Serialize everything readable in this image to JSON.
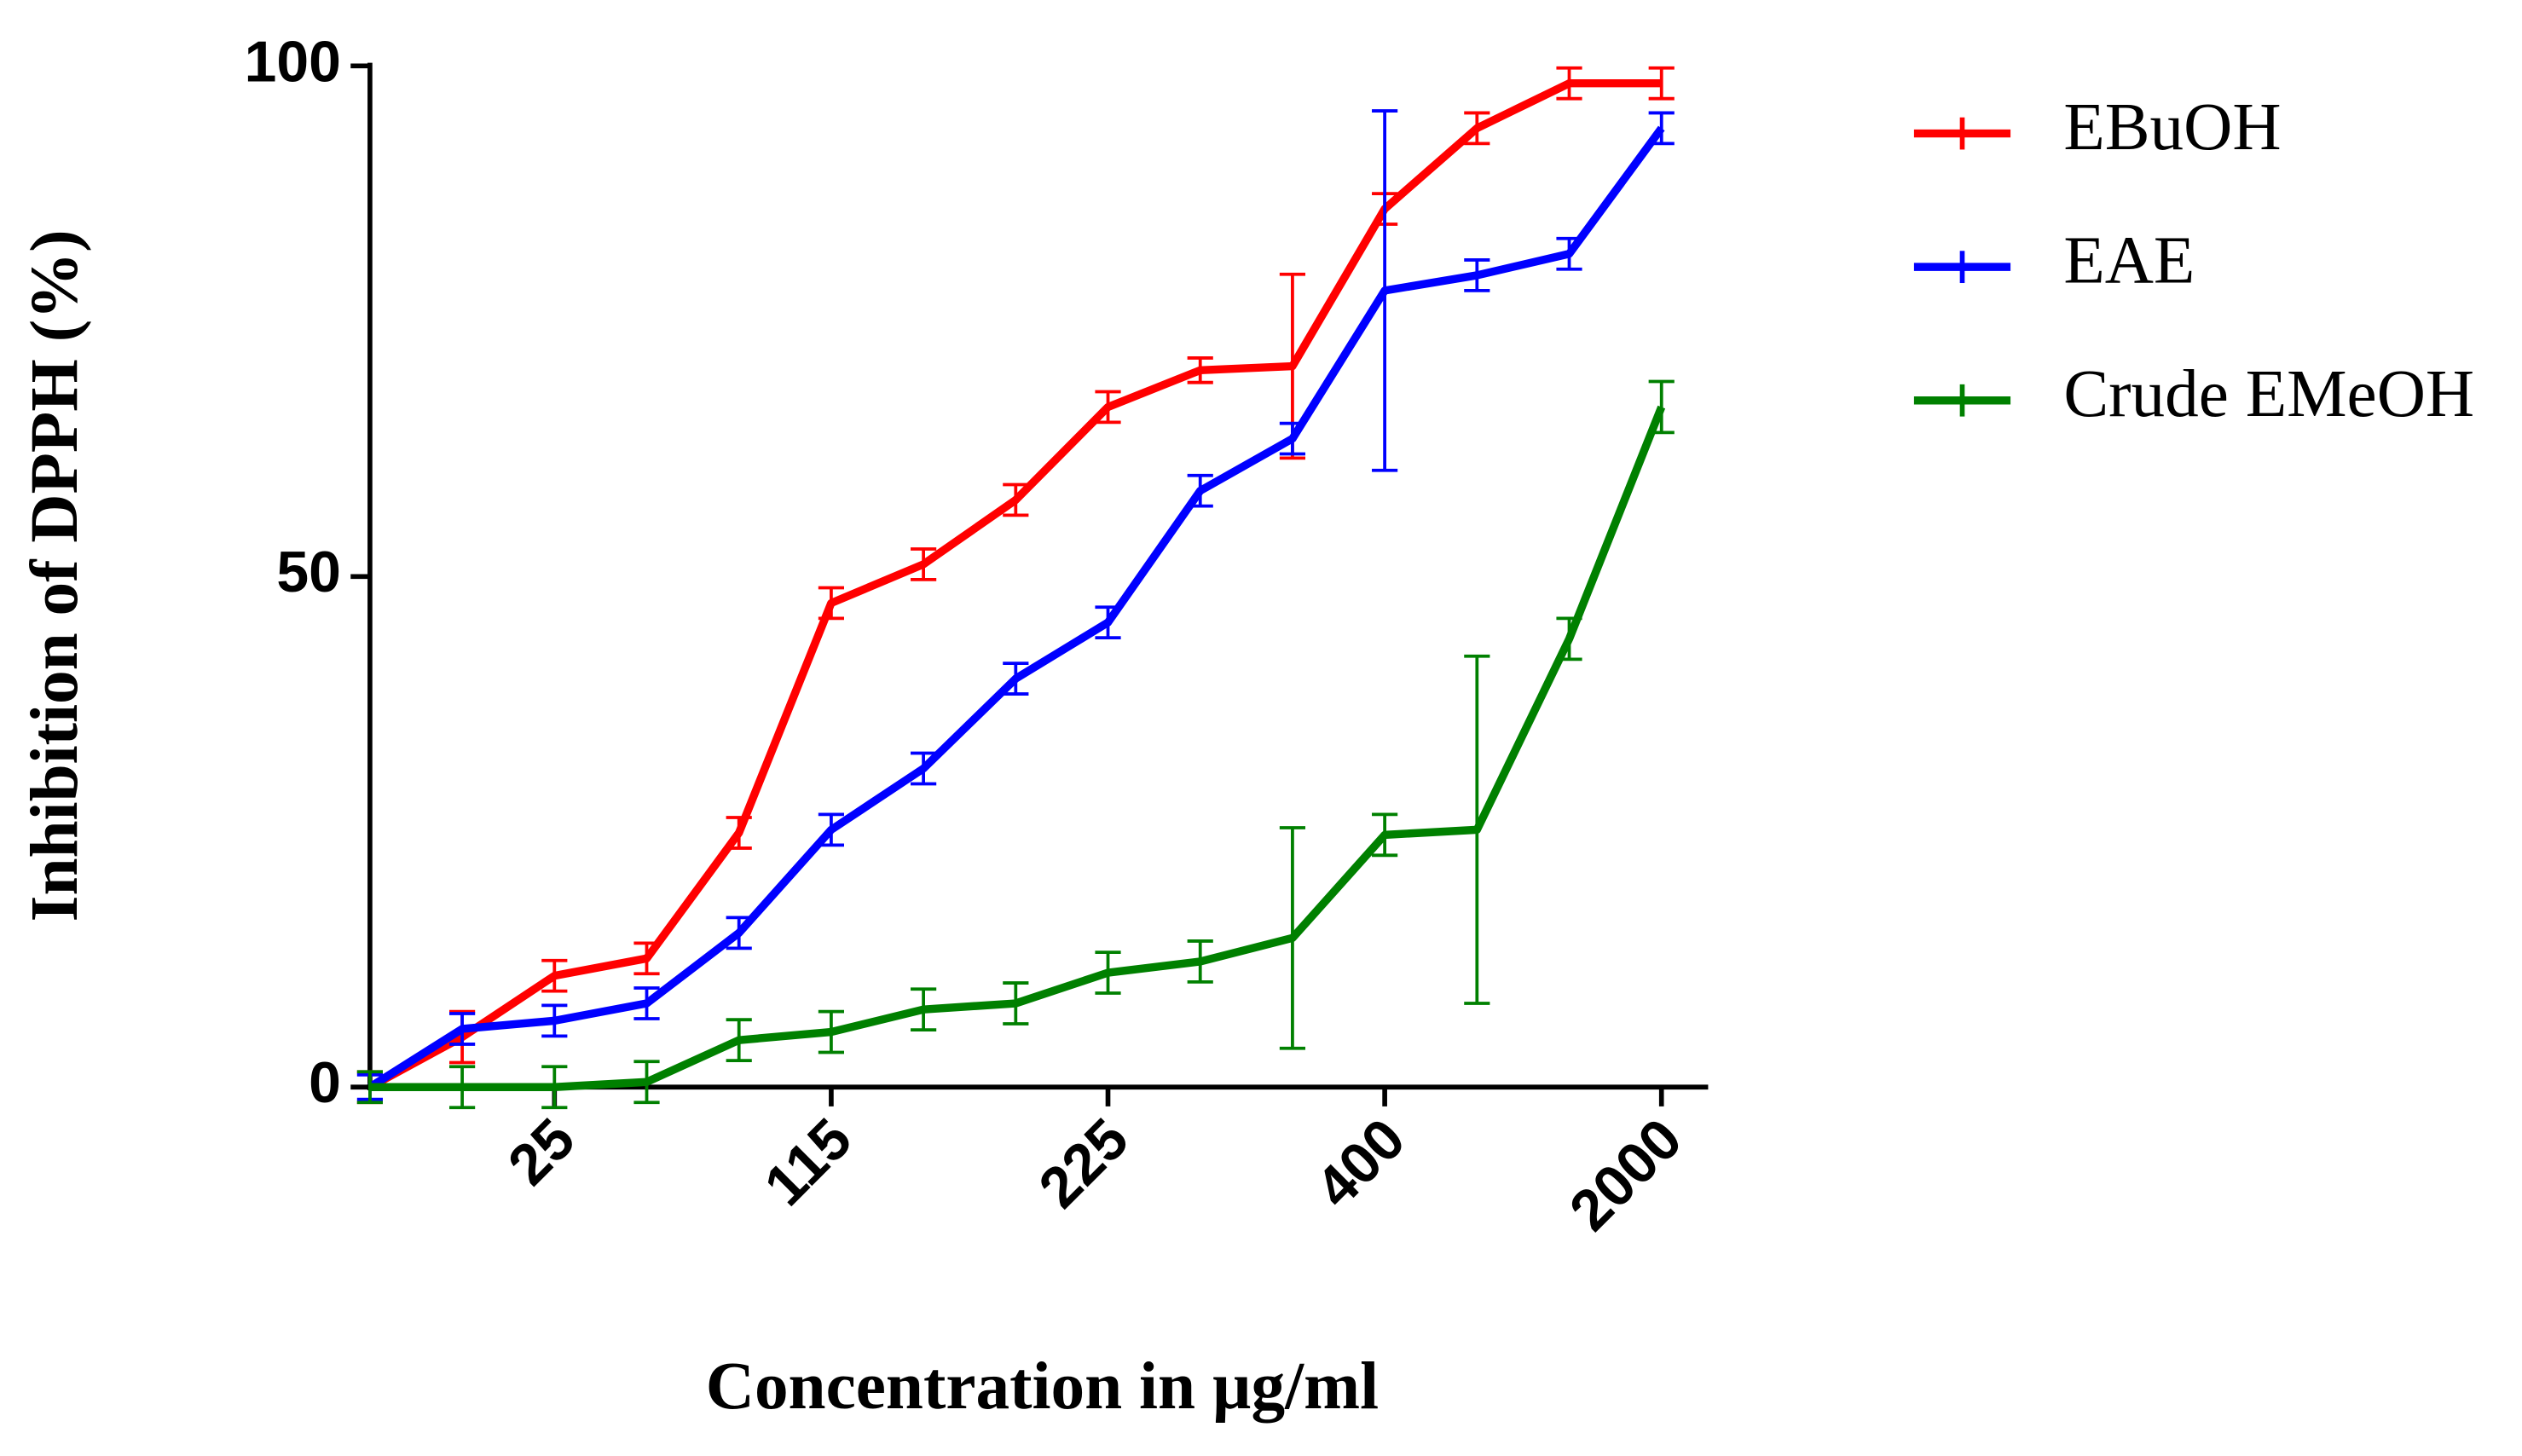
{
  "chart_data": {
    "type": "line",
    "x_label": "Concentration in µg/ml",
    "y_label": "Inhibition of DPPH (%)",
    "categories": [
      null,
      null,
      "25",
      null,
      null,
      "115",
      null,
      null,
      "225",
      null,
      null,
      "400",
      null,
      null,
      "2000"
    ],
    "ylim": [
      0,
      100
    ],
    "yticks": [
      0,
      50,
      100
    ],
    "legend": "right",
    "series": [
      {
        "name": "EBuOH",
        "color": "#ff0000",
        "values": [
          0,
          4.9,
          10.9,
          12.6,
          24.9,
          47.4,
          51.2,
          57.5,
          66.6,
          70.2,
          70.6,
          86.0,
          93.9,
          98.3,
          98.3
        ],
        "errors": [
          1.5,
          2.5,
          1.5,
          1.5,
          1.5,
          1.5,
          1.5,
          1.5,
          1.5,
          1.2,
          9.0,
          1.5,
          1.5,
          1.5,
          1.5
        ]
      },
      {
        "name": "EAE",
        "color": "#0000ff",
        "values": [
          0,
          5.7,
          6.5,
          8.2,
          15.1,
          25.2,
          31.2,
          40.0,
          45.5,
          58.4,
          63.5,
          78.0,
          79.5,
          81.6,
          93.9
        ],
        "errors": [
          1.2,
          1.5,
          1.5,
          1.5,
          1.5,
          1.5,
          1.5,
          1.5,
          1.5,
          1.5,
          1.5,
          17.6,
          1.5,
          1.5,
          1.5
        ]
      },
      {
        "name": "Crude EMeOH",
        "color": "#008000",
        "values": [
          0,
          0,
          0,
          0.5,
          4.6,
          5.4,
          7.6,
          8.2,
          11.2,
          12.3,
          14.6,
          24.7,
          25.2,
          43.9,
          66.6
        ],
        "errors": [
          1.5,
          2.0,
          2.0,
          2.0,
          2.0,
          2.0,
          2.0,
          2.0,
          2.0,
          2.0,
          10.8,
          2.0,
          17.0,
          2.0,
          2.5
        ]
      }
    ]
  }
}
